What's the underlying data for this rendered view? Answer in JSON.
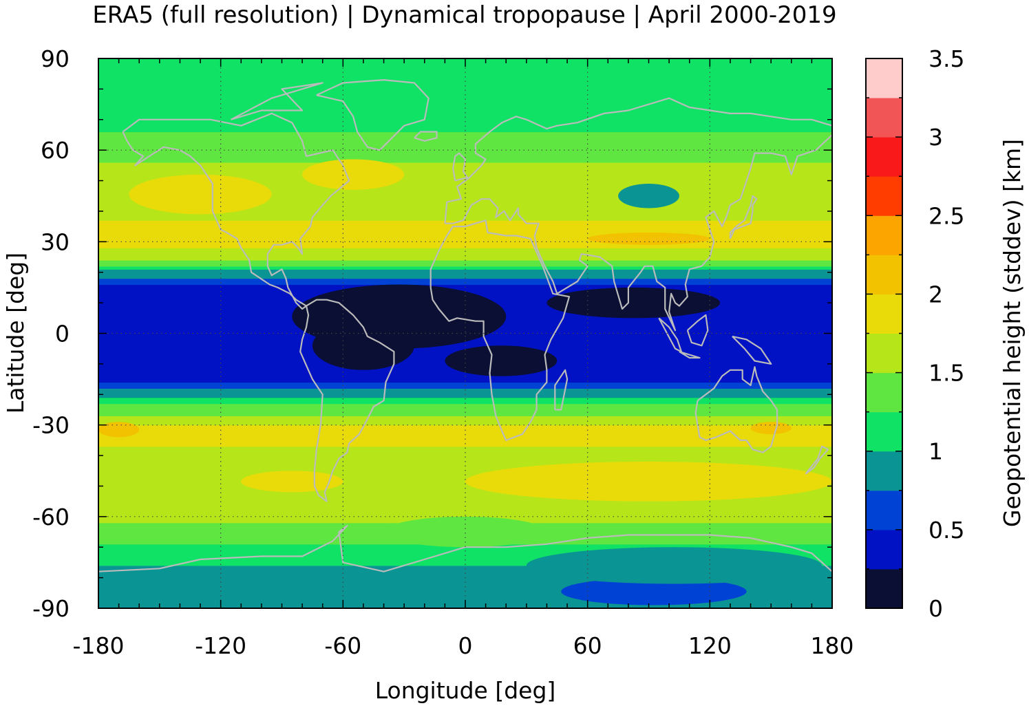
{
  "chart_data": {
    "type": "heatmap",
    "title": "ERA5 (full resolution) | Dynamical tropopause | April 2000-2019",
    "xlabel": "Longitude [deg]",
    "ylabel": "Latitude [deg]",
    "xlim": [
      -180,
      180
    ],
    "ylim": [
      -90,
      90
    ],
    "xticks": [
      -180,
      -120,
      -60,
      0,
      60,
      120,
      180
    ],
    "yticks": [
      -90,
      -60,
      -30,
      0,
      30,
      60,
      90
    ],
    "xtick_labels": [
      "-180",
      "-120",
      "-60",
      "0",
      "60",
      "120",
      "180"
    ],
    "ytick_labels": [
      "-90",
      "-60",
      "-30",
      "0",
      "30",
      "60",
      "90"
    ],
    "grid": true,
    "colorbar": {
      "label": "Geopotential height (stddev) [km]",
      "range": [
        0,
        3.5
      ],
      "ticks": [
        0,
        0.5,
        1,
        1.5,
        2,
        2.5,
        3,
        3.5
      ],
      "tick_labels": [
        "0",
        "0.5",
        "1",
        "1.5",
        "2",
        "2.5",
        "3",
        "3.5"
      ],
      "levels": [
        0,
        0.25,
        0.5,
        0.75,
        1,
        1.25,
        1.5,
        1.75,
        2,
        2.25,
        2.5,
        2.75,
        3,
        3.25,
        3.5
      ],
      "colors": [
        "#0b0f33",
        "#0012c4",
        "#0042d4",
        "#0a9494",
        "#10e266",
        "#5fe640",
        "#b6e619",
        "#e8db09",
        "#f2c100",
        "#fca400",
        "#ff3d00",
        "#f9181a",
        "#f25556",
        "#ffcccc"
      ]
    },
    "zonal_profile": [
      {
        "lat": -90,
        "value": 0.85
      },
      {
        "lat": -80,
        "value": 0.85
      },
      {
        "lat": -75,
        "value": 1.05
      },
      {
        "lat": -68,
        "value": 1.3
      },
      {
        "lat": -60,
        "value": 1.55
      },
      {
        "lat": -50,
        "value": 1.75
      },
      {
        "lat": -40,
        "value": 1.7
      },
      {
        "lat": -32,
        "value": 1.85
      },
      {
        "lat": -25,
        "value": 1.4
      },
      {
        "lat": -20,
        "value": 0.9
      },
      {
        "lat": -15,
        "value": 0.45
      },
      {
        "lat": -8,
        "value": 0.35
      },
      {
        "lat": 0,
        "value": 0.3
      },
      {
        "lat": 8,
        "value": 0.3
      },
      {
        "lat": 15,
        "value": 0.45
      },
      {
        "lat": 20,
        "value": 0.9
      },
      {
        "lat": 25,
        "value": 1.6
      },
      {
        "lat": 32,
        "value": 1.9
      },
      {
        "lat": 40,
        "value": 1.65
      },
      {
        "lat": 48,
        "value": 1.75
      },
      {
        "lat": 55,
        "value": 1.55
      },
      {
        "lat": 62,
        "value": 1.3
      },
      {
        "lat": 70,
        "value": 1.2
      },
      {
        "lat": 80,
        "value": 1.05
      },
      {
        "lat": 90,
        "value": 1.05
      }
    ],
    "regional_features": [
      {
        "lon": [
          -85,
          20
        ],
        "lat": [
          -5,
          16
        ],
        "value": 0.1
      },
      {
        "lon": [
          40,
          125
        ],
        "lat": [
          5,
          15
        ],
        "value": 0.1
      },
      {
        "lon": [
          -10,
          45
        ],
        "lat": [
          -14,
          -4
        ],
        "value": 0.1
      },
      {
        "lon": [
          -75,
          -25
        ],
        "lat": [
          -12,
          4
        ],
        "value": 0.1
      },
      {
        "lon": [
          75,
          105
        ],
        "lat": [
          41,
          49
        ],
        "value": 0.85
      },
      {
        "lon": [
          47,
          138
        ],
        "lat": [
          -89,
          -80
        ],
        "value": 0.6
      },
      {
        "lon": [
          30,
          175
        ],
        "lat": [
          -82,
          -70
        ],
        "value": 0.85
      },
      {
        "lon": [
          -165,
          -95
        ],
        "lat": [
          39,
          52
        ],
        "value": 1.85
      },
      {
        "lon": [
          -80,
          -30
        ],
        "lat": [
          47,
          57
        ],
        "value": 1.85
      },
      {
        "lon": [
          -180,
          -160
        ],
        "lat": [
          -34,
          -29
        ],
        "value": 2.05
      },
      {
        "lon": [
          140,
          160
        ],
        "lat": [
          -33,
          -29
        ],
        "value": 2.05
      },
      {
        "lon": [
          -110,
          -60
        ],
        "lat": [
          -52,
          -45
        ],
        "value": 1.85
      },
      {
        "lon": [
          0,
          180
        ],
        "lat": [
          -55,
          -42
        ],
        "value": 1.85
      },
      {
        "lon": [
          60,
          120
        ],
        "lat": [
          29,
          33
        ],
        "value": 2.05
      },
      {
        "lon": [
          -150,
          -110
        ],
        "lat": [
          0,
          8
        ],
        "value": 0.45
      },
      {
        "lon": [
          -60,
          60
        ],
        "lat": [
          68,
          80
        ],
        "value": 1.1
      },
      {
        "lon": [
          -40,
          40
        ],
        "lat": [
          -70,
          -60
        ],
        "value": 1.4
      }
    ]
  },
  "style": {
    "map_outline_color": "#bbbbbb",
    "grid_color": "#444444"
  }
}
